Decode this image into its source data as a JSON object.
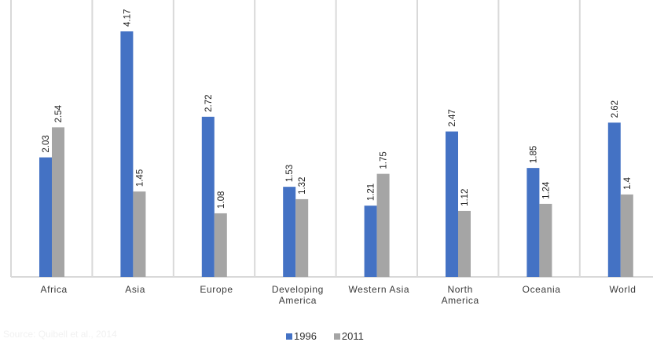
{
  "chart_data": {
    "type": "bar",
    "categories": [
      "Africa",
      "Asia",
      "Europe",
      "Developing\nAmerica",
      "Western Asia",
      "North\nAmerica",
      "Oceania",
      "World"
    ],
    "series": [
      {
        "name": "1996",
        "values": [
          2.03,
          4.17,
          2.72,
          1.53,
          1.21,
          2.47,
          1.85,
          2.62
        ],
        "labels": [
          "2.03",
          "4.17",
          "2.72",
          "1.53",
          "1.21",
          "2.47",
          "1.85",
          "2.62"
        ],
        "color": "#4472c4"
      },
      {
        "name": "2011",
        "values": [
          2.54,
          1.45,
          1.08,
          1.32,
          1.75,
          1.12,
          1.24,
          1.4
        ],
        "labels": [
          "2.54",
          "1.45",
          "1.08",
          "1.32",
          "1.75",
          "1.12",
          "1.24",
          "1.4"
        ],
        "color": "#a5a5a5"
      }
    ],
    "ylim": [
      0,
      4.17
    ],
    "grid": "vertical separators between categories",
    "legend": "bottom-center",
    "source_note": "Source: Quibell et al., 2014"
  }
}
